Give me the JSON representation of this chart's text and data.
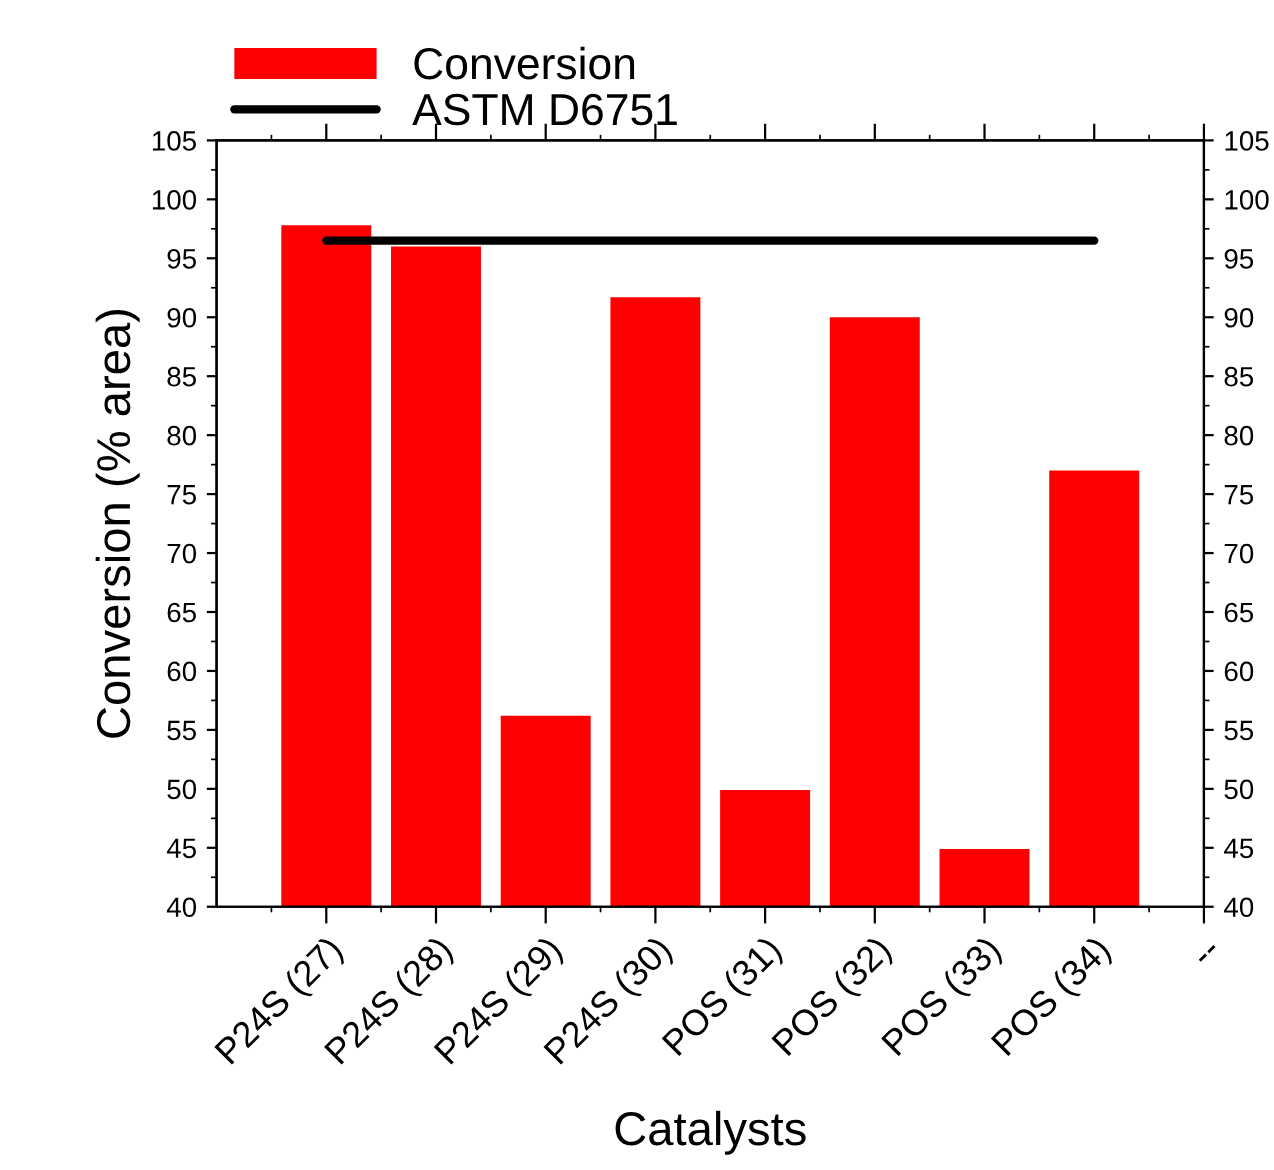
{
  "chart_data": {
    "type": "bar",
    "categories": [
      "P24S (27)",
      "P24S (28)",
      "P24S (29)",
      "P24S (30)",
      "POS (31)",
      "POS (32)",
      "POS (33)",
      "POS (34)",
      "--"
    ],
    "series": [
      {
        "name": "Conversion",
        "type": "bar",
        "color": "#ff0000",
        "values": [
          97.8,
          96.0,
          56.2,
          91.7,
          49.9,
          90.0,
          44.9,
          77.0,
          null
        ]
      },
      {
        "name": "ASTM D6751",
        "type": "line",
        "color": "#000000",
        "values": [
          96.5,
          96.5,
          96.5,
          96.5,
          96.5,
          96.5,
          96.5,
          96.5,
          null
        ]
      }
    ],
    "xlabel": "Catalysts",
    "ylabel": "Conversion (% area)",
    "ylim": [
      40,
      105
    ],
    "yticks": [
      40,
      45,
      50,
      55,
      60,
      65,
      70,
      75,
      80,
      85,
      90,
      95,
      100,
      105
    ],
    "y2lim": [
      40,
      105
    ],
    "y2ticks": [
      40,
      45,
      50,
      55,
      60,
      65,
      70,
      75,
      80,
      85,
      90,
      95,
      100,
      105
    ],
    "legend": "top left",
    "grid": false,
    "marker": "none",
    "line_style": "solid"
  }
}
